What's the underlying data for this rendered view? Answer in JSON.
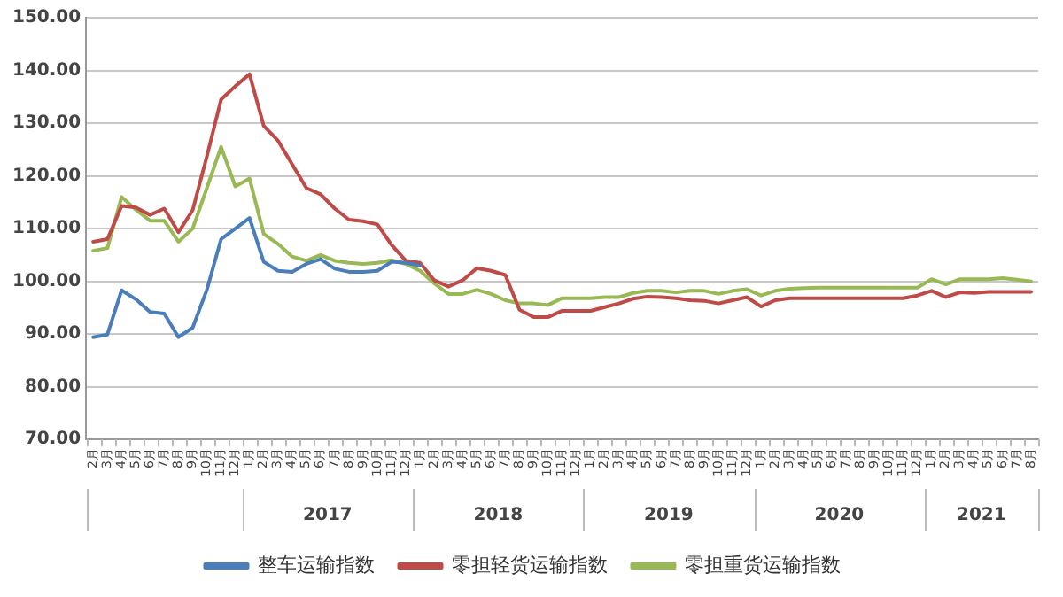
{
  "chart_data": {
    "type": "line",
    "categories": [
      "2月",
      "3月",
      "4月",
      "5月",
      "6月",
      "7月",
      "8月",
      "9月",
      "10月",
      "11月",
      "12月",
      "1月",
      "2月",
      "3月",
      "4月",
      "5月",
      "6月",
      "7月",
      "8月",
      "9月",
      "10月",
      "11月",
      "12月",
      "1月",
      "2月",
      "3月",
      "4月",
      "5月",
      "6月",
      "7月",
      "8月",
      "9月",
      "10月",
      "11月",
      "12月",
      "1月",
      "2月",
      "3月",
      "4月",
      "5月",
      "6月",
      "7月",
      "8月",
      "9月",
      "10月",
      "11月",
      "12月",
      "1月",
      "2月",
      "3月",
      "4月",
      "5月",
      "6月",
      "7月",
      "8月",
      "9月",
      "10月",
      "11月",
      "12月",
      "1月",
      "2月",
      "3月",
      "4月",
      "5月",
      "6月",
      "7月",
      "8月"
    ],
    "series": [
      {
        "name": "整车运输指数",
        "color": "#4a7ebb",
        "values": [
          89.4,
          89.9,
          98.3,
          96.6,
          94.2,
          93.9,
          89.4,
          91.2,
          98.4,
          108,
          110,
          112,
          103.7,
          102,
          101.8,
          103.3,
          104.2,
          102.4,
          101.8,
          101.8,
          102,
          103.7,
          103.5,
          103,
          null,
          null,
          null,
          null,
          null,
          null,
          null,
          null,
          null,
          null,
          null,
          null,
          null,
          null,
          null,
          null,
          null,
          null,
          null,
          null,
          null,
          null,
          null,
          null,
          null,
          null,
          null,
          null,
          null,
          null,
          null,
          null,
          null,
          null,
          null,
          null,
          null,
          null,
          null,
          null,
          null,
          null,
          null
        ]
      },
      {
        "name": "零担轻货运输指数",
        "color": "#be4b48",
        "values": [
          107.5,
          108,
          114.3,
          114,
          112.6,
          113.8,
          109.3,
          113.5,
          123.7,
          134.5,
          137,
          139.3,
          129.5,
          126.7,
          122.2,
          117.7,
          116.5,
          113.8,
          111.7,
          111.4,
          110.8,
          106.9,
          103.9,
          103.5,
          100.2,
          99,
          100.2,
          102.5,
          102,
          101.2,
          94.6,
          93.2,
          93.2,
          94.4,
          94.4,
          94.4,
          95.1,
          95.8,
          96.7,
          97.1,
          97,
          96.8,
          96.4,
          96.3,
          95.8,
          96.4,
          97,
          95.2,
          96.4,
          96.8,
          96.8,
          96.8,
          96.8,
          96.8,
          96.8,
          96.8,
          96.8,
          96.8,
          97.3,
          98.2,
          97,
          97.9,
          97.8,
          98,
          98,
          98,
          98
        ]
      },
      {
        "name": "零担重货运输指数",
        "color": "#98b954",
        "values": [
          105.8,
          106.3,
          116,
          113.6,
          111.5,
          111.5,
          107.5,
          110,
          117.7,
          125.5,
          118,
          119.5,
          109,
          107.1,
          104.7,
          103.9,
          105,
          103.9,
          103.5,
          103.3,
          103.5,
          104,
          103.3,
          102,
          99.6,
          97.6,
          97.6,
          98.4,
          97.6,
          96.4,
          95.8,
          95.8,
          95.5,
          96.8,
          96.8,
          96.8,
          97,
          97,
          97.8,
          98.2,
          98.2,
          97.9,
          98.2,
          98.2,
          97.6,
          98.2,
          98.5,
          97.3,
          98.2,
          98.6,
          98.7,
          98.8,
          98.8,
          98.8,
          98.8,
          98.8,
          98.8,
          98.8,
          98.8,
          100.4,
          99.4,
          100.4,
          100.4,
          100.4,
          100.6,
          100.3,
          100
        ]
      }
    ],
    "ylim": [
      70,
      150
    ],
    "yticks": [
      {
        "value": 70,
        "label": "70.00"
      },
      {
        "value": 80,
        "label": "80.00"
      },
      {
        "value": 90,
        "label": "90.00"
      },
      {
        "value": 100,
        "label": "100.00"
      },
      {
        "value": 110,
        "label": "110.00"
      },
      {
        "value": 120,
        "label": "120.00"
      },
      {
        "value": 130,
        "label": "130.00"
      },
      {
        "value": 140,
        "label": "140.00"
      },
      {
        "value": 150,
        "label": "150.00"
      }
    ],
    "annotations": [
      "2017",
      "2018",
      "2019",
      "2020",
      "2021"
    ],
    "grid": "y",
    "legend": "bottom",
    "marker": "none",
    "line_style": "solid"
  }
}
